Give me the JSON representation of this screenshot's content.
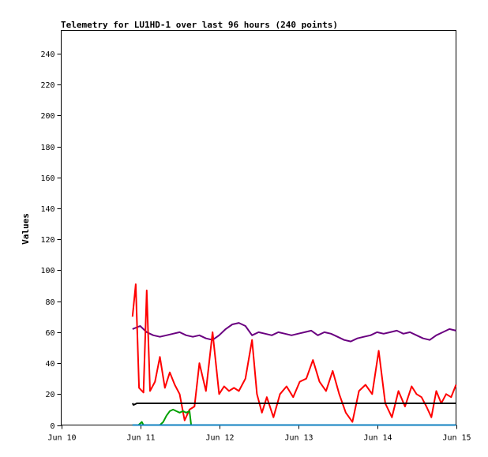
{
  "chart_data": {
    "type": "line",
    "title": "Telemetry for LU1HD-1 over last 96 hours (240 points)",
    "xlabel": "",
    "ylabel": "Values",
    "x_ticks": [
      "Jun 10",
      "Jun 11",
      "Jun 12",
      "Jun 13",
      "Jun 14",
      "Jun 15"
    ],
    "xlim": [
      "Jun 10",
      "Jun 15"
    ],
    "ylim": [
      0,
      255
    ],
    "y_ticks": [
      0,
      20,
      40,
      60,
      80,
      100,
      120,
      140,
      160,
      180,
      200,
      220,
      240
    ],
    "grid": false,
    "legend": "none",
    "series": [
      {
        "color": "#6a0080",
        "x": [
          "Jun 10 21:40",
          "Jun 11 00:00",
          "Jun 11 02:00",
          "Jun 11 04:00",
          "Jun 11 06:00",
          "Jun 11 08:00",
          "Jun 11 10:00",
          "Jun 11 12:00",
          "Jun 11 14:00",
          "Jun 11 16:00",
          "Jun 11 18:00",
          "Jun 11 20:00",
          "Jun 11 22:00",
          "Jun 12 00:00",
          "Jun 12 02:00",
          "Jun 12 04:00",
          "Jun 12 06:00",
          "Jun 12 08:00",
          "Jun 12 10:00",
          "Jun 12 12:00",
          "Jun 12 14:00",
          "Jun 12 16:00",
          "Jun 12 18:00",
          "Jun 12 20:00",
          "Jun 12 22:00",
          "Jun 13 00:00",
          "Jun 13 02:00",
          "Jun 13 04:00",
          "Jun 13 06:00",
          "Jun 13 08:00",
          "Jun 13 10:00",
          "Jun 13 12:00",
          "Jun 13 14:00",
          "Jun 13 16:00",
          "Jun 13 18:00",
          "Jun 13 20:00",
          "Jun 13 22:00",
          "Jun 14 00:00",
          "Jun 14 02:00",
          "Jun 14 04:00",
          "Jun 14 06:00",
          "Jun 14 08:00",
          "Jun 14 10:00",
          "Jun 14 12:00",
          "Jun 14 14:00",
          "Jun 14 16:00",
          "Jun 14 18:00",
          "Jun 14 20:00",
          "Jun 14 22:00",
          "Jun 15 00:00"
        ],
        "y": [
          62,
          64,
          60,
          58,
          57,
          58,
          59,
          60,
          58,
          57,
          58,
          56,
          55,
          58,
          62,
          65,
          66,
          64,
          58,
          60,
          59,
          58,
          60,
          59,
          58,
          59,
          60,
          61,
          58,
          60,
          59,
          57,
          55,
          54,
          56,
          57,
          58,
          60,
          59,
          60,
          61,
          59,
          60,
          58,
          56,
          55,
          58,
          60,
          62,
          61
        ]
      },
      {
        "color": "#ff0000",
        "x": [
          "Jun 10 21:40",
          "Jun 10 22:40",
          "Jun 10 23:40",
          "Jun 11 01:00",
          "Jun 11 02:00",
          "Jun 11 03:00",
          "Jun 11 04:30",
          "Jun 11 06:00",
          "Jun 11 07:30",
          "Jun 11 09:00",
          "Jun 11 10:30",
          "Jun 11 12:00",
          "Jun 11 13:30",
          "Jun 11 15:00",
          "Jun 11 16:30",
          "Jun 11 18:00",
          "Jun 11 20:00",
          "Jun 11 22:00",
          "Jun 12 00:00",
          "Jun 12 01:30",
          "Jun 12 03:00",
          "Jun 12 04:30",
          "Jun 12 06:00",
          "Jun 12 08:00",
          "Jun 12 10:00",
          "Jun 12 11:30",
          "Jun 12 13:00",
          "Jun 12 14:30",
          "Jun 12 16:30",
          "Jun 12 18:30",
          "Jun 12 20:30",
          "Jun 12 22:30",
          "Jun 13 00:30",
          "Jun 13 02:30",
          "Jun 13 04:30",
          "Jun 13 06:30",
          "Jun 13 08:30",
          "Jun 13 10:30",
          "Jun 13 12:30",
          "Jun 13 14:30",
          "Jun 13 16:30",
          "Jun 13 18:30",
          "Jun 13 20:30",
          "Jun 13 22:30",
          "Jun 14 00:30",
          "Jun 14 02:30",
          "Jun 14 04:30",
          "Jun 14 06:30",
          "Jun 14 08:30",
          "Jun 14 10:30",
          "Jun 14 12:00",
          "Jun 14 13:30",
          "Jun 14 15:00",
          "Jun 14 16:30",
          "Jun 14 18:00",
          "Jun 14 19:30",
          "Jun 14 21:00",
          "Jun 14 22:30",
          "Jun 15 00:00"
        ],
        "y": [
          70,
          91,
          24,
          21,
          87,
          22,
          28,
          44,
          24,
          34,
          26,
          20,
          3,
          10,
          12,
          40,
          22,
          60,
          20,
          25,
          22,
          24,
          22,
          30,
          55,
          20,
          8,
          18,
          5,
          20,
          25,
          18,
          28,
          30,
          42,
          28,
          22,
          35,
          20,
          8,
          2,
          22,
          26,
          20,
          48,
          14,
          5,
          22,
          12,
          25,
          20,
          18,
          12,
          5,
          22,
          14,
          20,
          18,
          26
        ]
      },
      {
        "color": "#000000",
        "x": [
          "Jun 10 21:40",
          "Jun 10 22:00",
          "Jun 10 23:00",
          "Jun 11 00:00",
          "Jun 11 06:00",
          "Jun 11 12:00",
          "Jun 11 18:00",
          "Jun 12 00:00",
          "Jun 12 06:00",
          "Jun 12 12:00",
          "Jun 12 18:00",
          "Jun 13 00:00",
          "Jun 13 06:00",
          "Jun 13 12:00",
          "Jun 13 18:00",
          "Jun 14 00:00",
          "Jun 14 06:00",
          "Jun 14 12:00",
          "Jun 14 18:00",
          "Jun 15 00:00"
        ],
        "y": [
          14,
          13,
          14,
          14,
          14,
          14,
          14,
          14,
          14,
          14,
          14,
          14,
          14,
          14,
          14,
          14,
          14,
          14,
          14,
          14
        ]
      },
      {
        "color": "#00a000",
        "x": [
          "Jun 10 21:40",
          "Jun 10 23:30",
          "Jun 11 00:30",
          "Jun 11 01:00",
          "Jun 11 06:00",
          "Jun 11 07:00",
          "Jun 11 08:00",
          "Jun 11 09:00",
          "Jun 11 10:00",
          "Jun 11 11:00",
          "Jun 11 12:00",
          "Jun 11 13:00",
          "Jun 11 14:00",
          "Jun 11 15:00",
          "Jun 11 15:30"
        ],
        "y": [
          0,
          0,
          2,
          0,
          0,
          2,
          6,
          9,
          10,
          9,
          8,
          9,
          8,
          9,
          0
        ]
      },
      {
        "color": "#1080c0",
        "x": [
          "Jun 10 21:40",
          "Jun 15 00:00"
        ],
        "y": [
          0,
          0
        ]
      }
    ]
  }
}
